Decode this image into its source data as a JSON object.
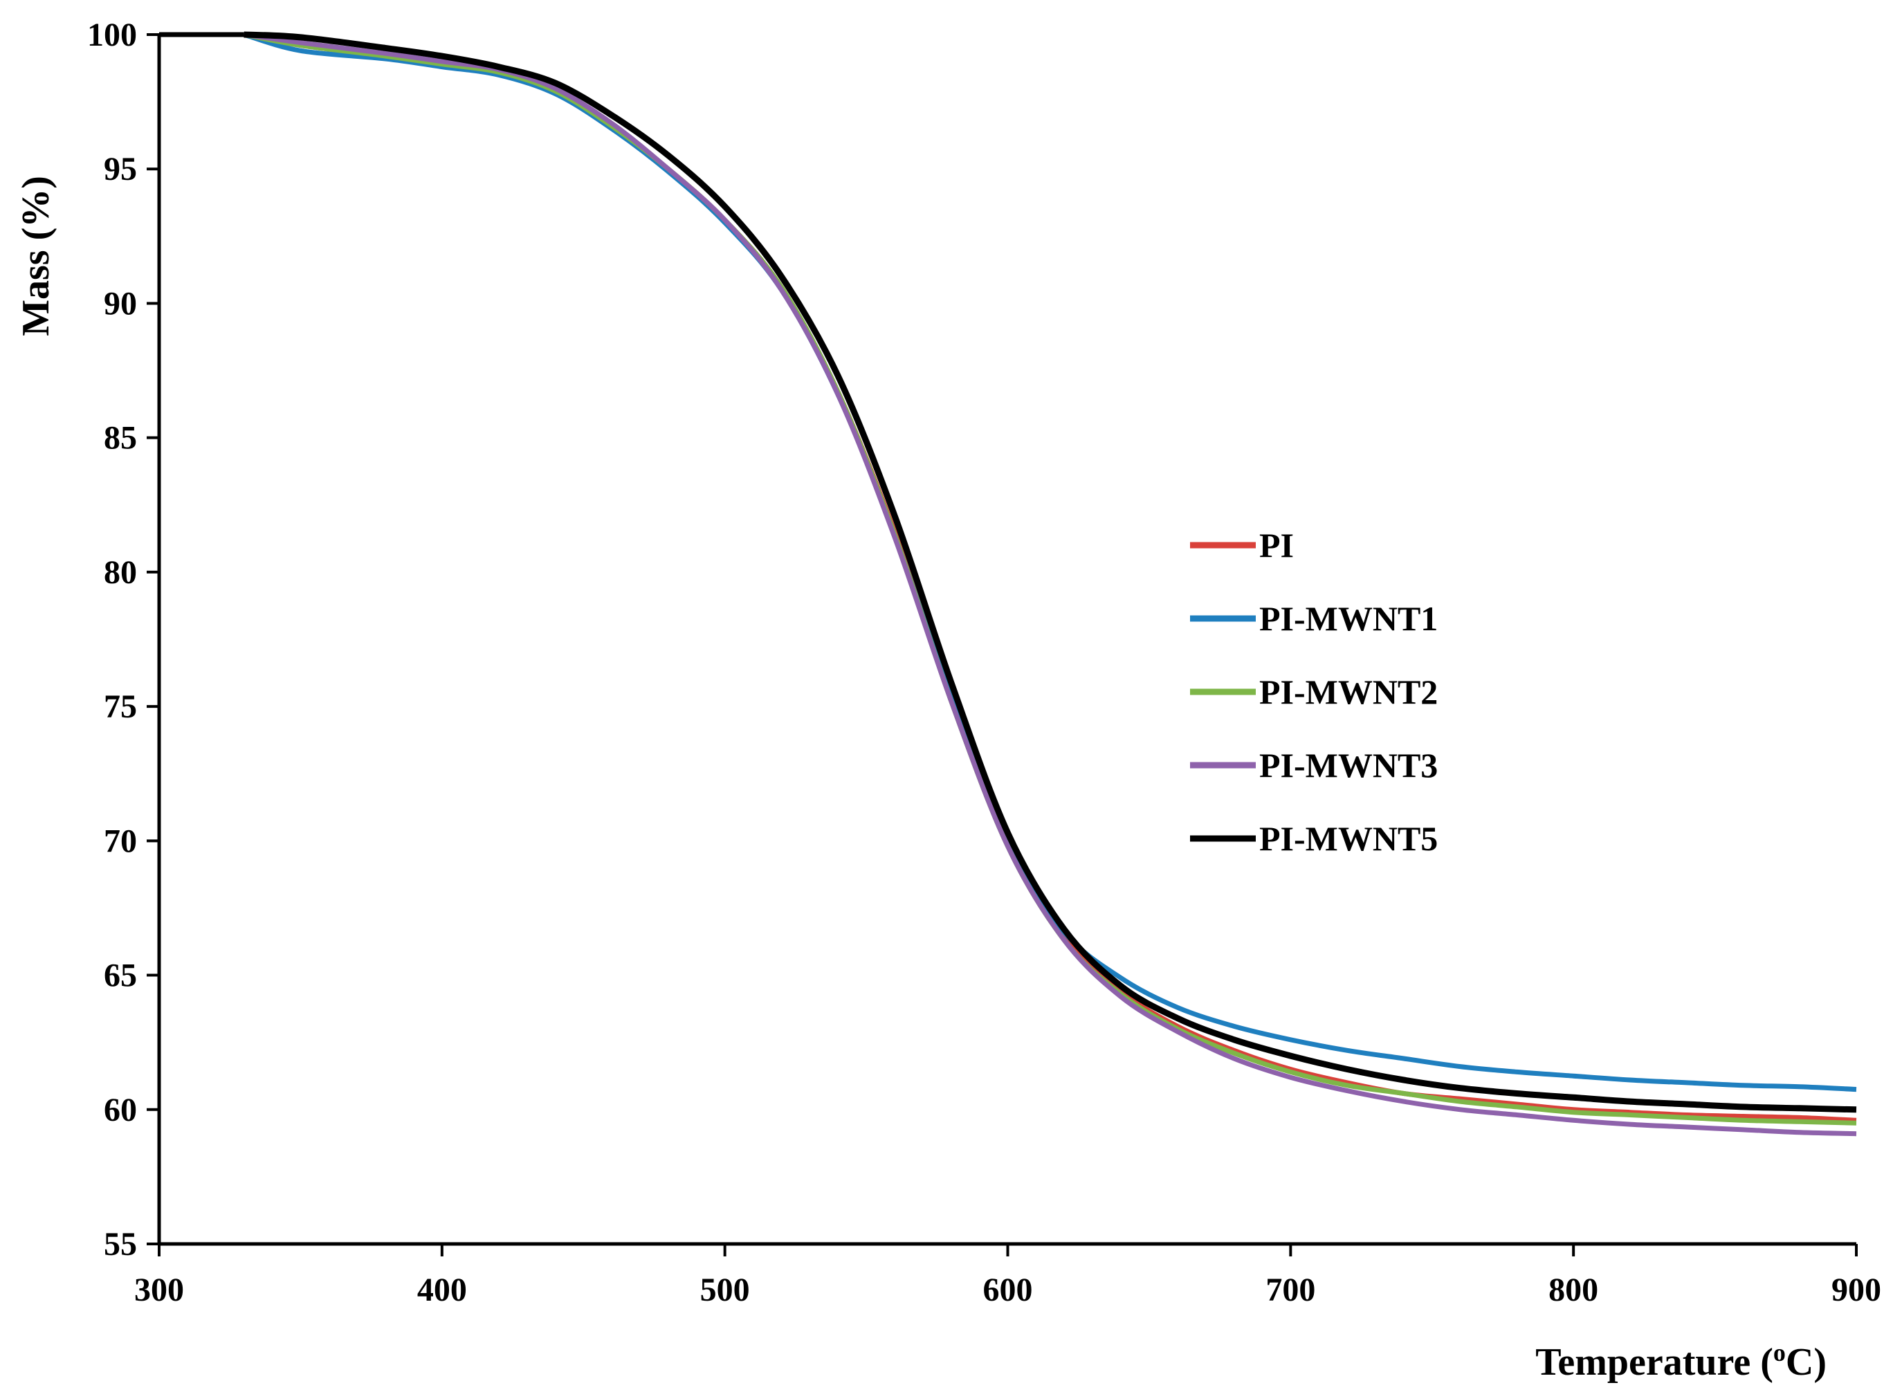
{
  "chart_data": {
    "type": "line",
    "title": "",
    "xlabel": "Temperature (",
    "xlabel_sup": "o",
    "xlabel_unit": "C)",
    "ylabel": "Mass (%)",
    "xlim": [
      300,
      900
    ],
    "ylim": [
      55,
      100
    ],
    "xticks": [
      300,
      400,
      500,
      600,
      700,
      800,
      900
    ],
    "yticks": [
      55,
      60,
      65,
      70,
      75,
      80,
      85,
      90,
      95,
      100
    ],
    "grid": false,
    "legend_position": "right-middle",
    "series": [
      {
        "name": "PI",
        "color": "#d9413a",
        "x": [
          330,
          350,
          380,
          400,
          420,
          440,
          460,
          480,
          500,
          520,
          540,
          560,
          580,
          600,
          620,
          640,
          660,
          680,
          700,
          720,
          740,
          760,
          780,
          800,
          820,
          840,
          860,
          880,
          900
        ],
        "y": [
          100,
          99.6,
          99.2,
          98.9,
          98.6,
          97.9,
          96.6,
          95.0,
          93.1,
          90.6,
          86.7,
          81.5,
          75.4,
          70.0,
          66.5,
          64.4,
          63.1,
          62.2,
          61.5,
          61.0,
          60.6,
          60.4,
          60.2,
          60.0,
          59.9,
          59.8,
          59.75,
          59.7,
          59.6
        ]
      },
      {
        "name": "PI-MWNT1",
        "color": "#1f7fbf",
        "x": [
          330,
          350,
          380,
          400,
          420,
          440,
          460,
          480,
          500,
          520,
          540,
          560,
          580,
          600,
          620,
          640,
          660,
          680,
          700,
          720,
          740,
          760,
          780,
          800,
          820,
          840,
          860,
          880,
          900
        ],
        "y": [
          100,
          99.4,
          99.1,
          98.8,
          98.5,
          97.8,
          96.5,
          94.9,
          93.0,
          90.5,
          86.6,
          81.4,
          75.3,
          69.9,
          66.6,
          64.9,
          63.8,
          63.1,
          62.6,
          62.2,
          61.9,
          61.6,
          61.4,
          61.25,
          61.1,
          61.0,
          60.9,
          60.85,
          60.75
        ]
      },
      {
        "name": "PI-MWNT2",
        "color": "#7eb648",
        "x": [
          330,
          350,
          380,
          400,
          420,
          440,
          460,
          480,
          500,
          520,
          540,
          560,
          580,
          600,
          620,
          640,
          660,
          680,
          700,
          720,
          740,
          760,
          780,
          800,
          820,
          840,
          860,
          880,
          900
        ],
        "y": [
          100,
          99.6,
          99.2,
          98.9,
          98.6,
          97.9,
          96.6,
          95.0,
          93.1,
          90.6,
          86.7,
          81.4,
          75.2,
          69.8,
          66.3,
          64.3,
          63.0,
          62.1,
          61.4,
          60.9,
          60.6,
          60.3,
          60.1,
          59.9,
          59.8,
          59.7,
          59.6,
          59.55,
          59.5
        ]
      },
      {
        "name": "PI-MWNT3",
        "color": "#8e62ab",
        "x": [
          330,
          350,
          380,
          400,
          420,
          440,
          460,
          480,
          500,
          520,
          540,
          560,
          580,
          600,
          620,
          640,
          660,
          680,
          700,
          720,
          740,
          760,
          780,
          800,
          820,
          840,
          860,
          880,
          900
        ],
        "y": [
          100,
          99.7,
          99.3,
          99.0,
          98.7,
          98.0,
          96.7,
          95.0,
          93.1,
          90.5,
          86.6,
          81.3,
          75.2,
          69.8,
          66.3,
          64.2,
          62.9,
          61.9,
          61.2,
          60.7,
          60.3,
          60.0,
          59.8,
          59.6,
          59.45,
          59.35,
          59.25,
          59.15,
          59.1
        ]
      },
      {
        "name": "PI-MWNT5",
        "color": "#000000",
        "x": [
          330,
          350,
          380,
          400,
          420,
          440,
          460,
          480,
          500,
          520,
          540,
          560,
          580,
          600,
          620,
          640,
          660,
          680,
          700,
          720,
          740,
          760,
          780,
          800,
          820,
          840,
          860,
          880,
          900
        ],
        "y": [
          100,
          99.9,
          99.5,
          99.2,
          98.8,
          98.2,
          97.0,
          95.5,
          93.6,
          91.0,
          87.3,
          82.1,
          75.9,
          70.3,
          66.7,
          64.6,
          63.4,
          62.6,
          62.0,
          61.5,
          61.1,
          60.8,
          60.6,
          60.45,
          60.3,
          60.2,
          60.1,
          60.05,
          60.0
        ]
      }
    ]
  }
}
